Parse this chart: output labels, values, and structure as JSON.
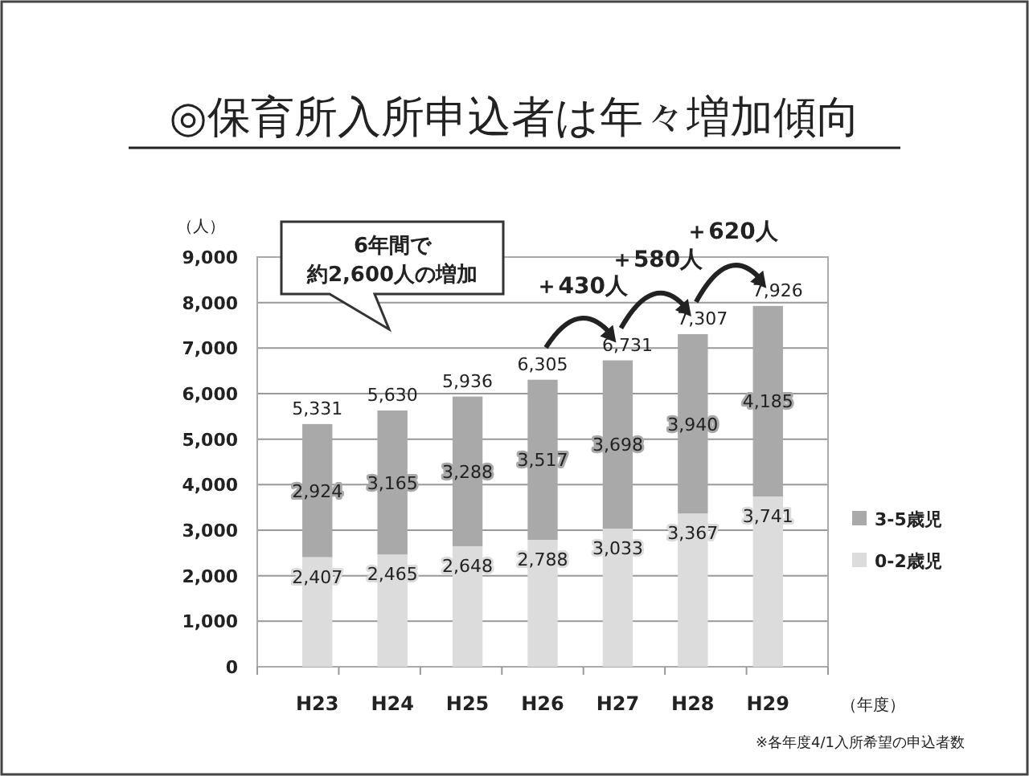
{
  "chart_data": {
    "type": "bar",
    "title": "◎保育所入所申込者は年々増加傾向",
    "ylabel": "（人）",
    "xlabel": "（年度）",
    "categories": [
      "H23",
      "H24",
      "H25",
      "H26",
      "H27",
      "H28",
      "H29"
    ],
    "stacked": true,
    "series": [
      {
        "name": "0-2歳児",
        "color": "#dcdcdc",
        "values": [
          2407,
          2465,
          2648,
          2788,
          3033,
          3367,
          3741
        ],
        "value_labels": [
          "2,407",
          "2,465",
          "2,648",
          "2,788",
          "3,033",
          "3,367",
          "3,741"
        ]
      },
      {
        "name": "3-5歳児",
        "color": "#a9a9a9",
        "values": [
          2924,
          3165,
          3288,
          3517,
          3698,
          3940,
          4185
        ],
        "value_labels": [
          "2,924",
          "3,165",
          "3,288",
          "3,517",
          "3,698",
          "3,940",
          "4,185"
        ]
      }
    ],
    "totals": [
      "5,331",
      "5,630",
      "5,936",
      "6,305",
      "6,731",
      "7,307",
      "7,926"
    ],
    "ylim": [
      0,
      9000
    ],
    "yticks": [
      {
        "value": 0,
        "label": "0"
      },
      {
        "value": 1000,
        "label": "1,000"
      },
      {
        "value": 2000,
        "label": "2,000"
      },
      {
        "value": 3000,
        "label": "3,000"
      },
      {
        "value": 4000,
        "label": "4,000"
      },
      {
        "value": 5000,
        "label": "5,000"
      },
      {
        "value": 6000,
        "label": "6,000"
      },
      {
        "value": 7000,
        "label": "7,000"
      },
      {
        "value": 8000,
        "label": "8,000"
      },
      {
        "value": 9000,
        "label": "9,000"
      }
    ],
    "grid": "y",
    "legend": "right",
    "annotations": [
      "6年間で",
      "約2,600人の増加",
      {
        "text": "＋430人",
        "x": "H27",
        "y": 6731
      },
      {
        "text": "＋580人",
        "x": "H28",
        "y": 7307
      },
      {
        "text": "＋620人",
        "x": "H29",
        "y": 7926
      },
      "※各年度4/1入所希望の申込者数"
    ]
  }
}
